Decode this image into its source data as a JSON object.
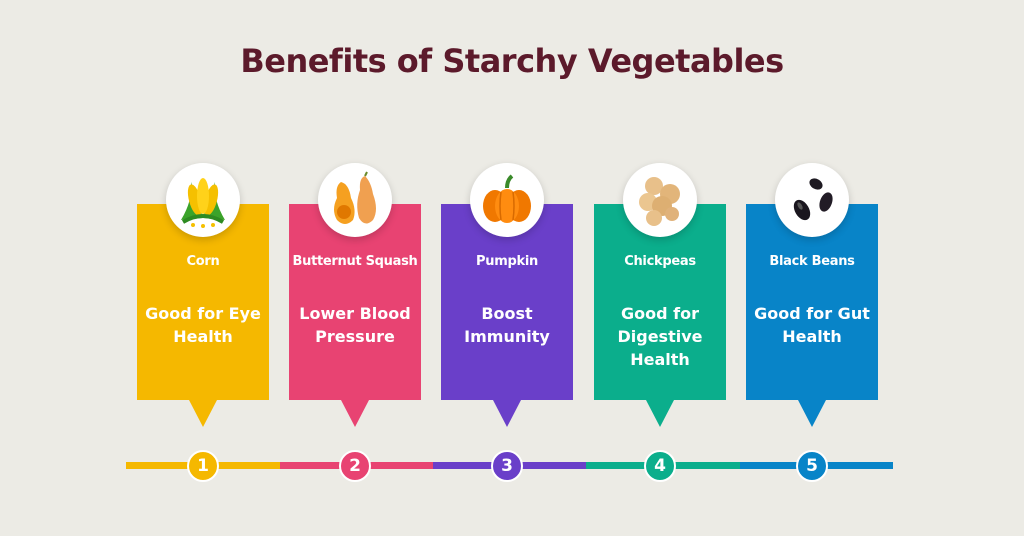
{
  "title": "Benefits of Starchy Vegetables",
  "items": [
    {
      "number": "1",
      "name": "Corn",
      "benefit": "Good for Eye Health",
      "color": "#F5B800",
      "icon": "corn-icon"
    },
    {
      "number": "2",
      "name": "Butternut Squash",
      "benefit": "Lower Blood Pressure",
      "color": "#E84372",
      "icon": "butternut-squash-icon"
    },
    {
      "number": "3",
      "name": "Pumpkin",
      "benefit": "Boost Immunity",
      "color": "#6A3FC9",
      "icon": "pumpkin-icon"
    },
    {
      "number": "4",
      "name": "Chickpeas",
      "benefit": "Good for Digestive Health",
      "color": "#0BAE8C",
      "icon": "chickpeas-icon"
    },
    {
      "number": "5",
      "name": "Black Beans",
      "benefit": "Good for Gut Health",
      "color": "#0884C8",
      "icon": "black-beans-icon"
    }
  ]
}
